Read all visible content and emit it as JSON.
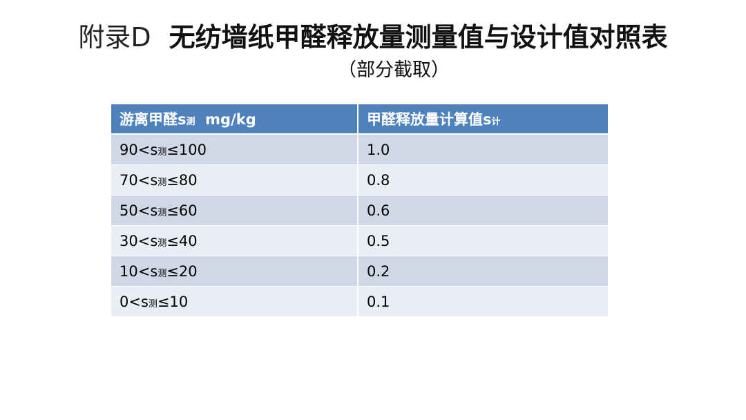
{
  "title": {
    "prefix": "附录D",
    "main": "无纺墙纸甲醛释放量测量值与设计值对照表"
  },
  "subtitle": "（部分截取）",
  "table": {
    "headers": [
      {
        "main": "游离甲醛s",
        "sub": "测",
        "suffix": "  mg/kg"
      },
      {
        "main": "甲醛释放量计算值s",
        "sub": "计",
        "suffix": ""
      }
    ],
    "rows": [
      {
        "range": {
          "pre": "90<s",
          "sub": "测",
          "post": "≤100"
        },
        "value": "1.0"
      },
      {
        "range": {
          "pre": "70<s",
          "sub": "测",
          "post": "≤80"
        },
        "value": "0.8"
      },
      {
        "range": {
          "pre": "50<s",
          "sub": "测",
          "post": "≤60"
        },
        "value": "0.6"
      },
      {
        "range": {
          "pre": "30<s",
          "sub": "测",
          "post": "≤40"
        },
        "value": "0.5"
      },
      {
        "range": {
          "pre": "10<s",
          "sub": "测",
          "post": "≤20"
        },
        "value": "0.2"
      },
      {
        "range": {
          "pre": "0<s",
          "sub": "测",
          "post": "≤10"
        },
        "value": "0.1"
      }
    ]
  },
  "colors": {
    "header_bg": "#4f81bd",
    "row_odd_bg": "#d0d8e8",
    "row_even_bg": "#e9edf4"
  }
}
